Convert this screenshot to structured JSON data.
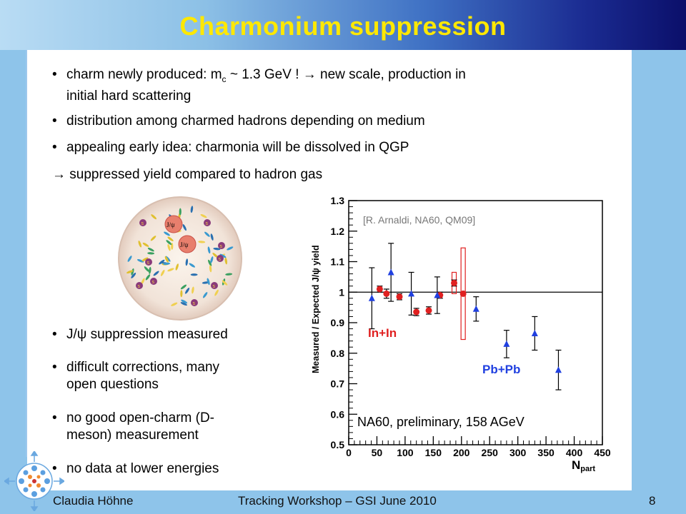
{
  "title": "Charmonium suppression",
  "bullets_top": [
    {
      "pre": "charm newly produced: m",
      "sub": "c",
      "post": " ~ 1.3 GeV ! → new scale, production in",
      "line2": "initial hard scattering"
    },
    {
      "text": "distribution among charmed hadrons depending on medium"
    },
    {
      "text": "appealing early idea: charmonia will be dissolved in QGP"
    }
  ],
  "arrow_line": "→ suppressed yield compared to hadron gas",
  "illustration": {
    "jpsi_label": "J/ψ",
    "s_label": "s"
  },
  "bullets_bottom": [
    {
      "line1": "J/ψ suppression measured"
    },
    {
      "line1": "difficult corrections, many",
      "line2": "open questions"
    },
    {
      "line1": "no good open-charm (D-",
      "line2": "meson) measurement"
    },
    {
      "line1": "no data at lower energies"
    }
  ],
  "footer": {
    "author": "Claudia Höhne",
    "event": "Tracking Workshop – GSI June 2010",
    "page": "8"
  },
  "chart_data": {
    "type": "scatter",
    "xlabel": "N",
    "xlabel_sub": "part",
    "ylabel": "Measured / Expected J/ψ yield",
    "xlim": [
      0,
      450
    ],
    "ylim": [
      0.5,
      1.3
    ],
    "x_ticks": [
      "0",
      "50",
      "100",
      "150",
      "200",
      "250",
      "300",
      "350",
      "400",
      "450"
    ],
    "y_ticks": [
      "0.5",
      "0.6",
      "0.7",
      "0.8",
      "0.9",
      "1",
      "1.1",
      "1.2",
      "1.3"
    ],
    "reference_line": 1.0,
    "annotations": {
      "citation": "[R. Arnaldi, NA60, QM09]",
      "note": "NA60, preliminary, 158 AGeV"
    },
    "series": [
      {
        "name": "In+In",
        "color": "#e02020",
        "marker": "circle",
        "points": [
          {
            "x": 55,
            "y": 1.01,
            "err": 0.01,
            "sys": 0
          },
          {
            "x": 67,
            "y": 0.995,
            "err": 0.015,
            "sys": 0
          },
          {
            "x": 90,
            "y": 0.985,
            "err": 0.01,
            "sys": 0
          },
          {
            "x": 120,
            "y": 0.935,
            "err": 0.012,
            "sys": 0
          },
          {
            "x": 142,
            "y": 0.94,
            "err": 0.012,
            "sys": 0
          },
          {
            "x": 162,
            "y": 0.99,
            "err": 0.01,
            "sys": 0
          },
          {
            "x": 187,
            "y": 1.03,
            "err": 0.01,
            "sys": 0.035
          },
          {
            "x": 203,
            "y": 0.995,
            "err": 0.0,
            "sys": 0.15
          }
        ]
      },
      {
        "name": "Pb+Pb",
        "color": "#2040e0",
        "marker": "triangle",
        "points": [
          {
            "x": 41,
            "y": 0.98,
            "err": 0.1
          },
          {
            "x": 75,
            "y": 1.065,
            "err": 0.095
          },
          {
            "x": 111,
            "y": 0.995,
            "err": 0.07
          },
          {
            "x": 157,
            "y": 0.99,
            "err": 0.06
          },
          {
            "x": 226,
            "y": 0.945,
            "err": 0.04
          },
          {
            "x": 280,
            "y": 0.83,
            "err": 0.045
          },
          {
            "x": 330,
            "y": 0.865,
            "err": 0.055
          },
          {
            "x": 372,
            "y": 0.745,
            "err": 0.065
          }
        ]
      }
    ]
  }
}
